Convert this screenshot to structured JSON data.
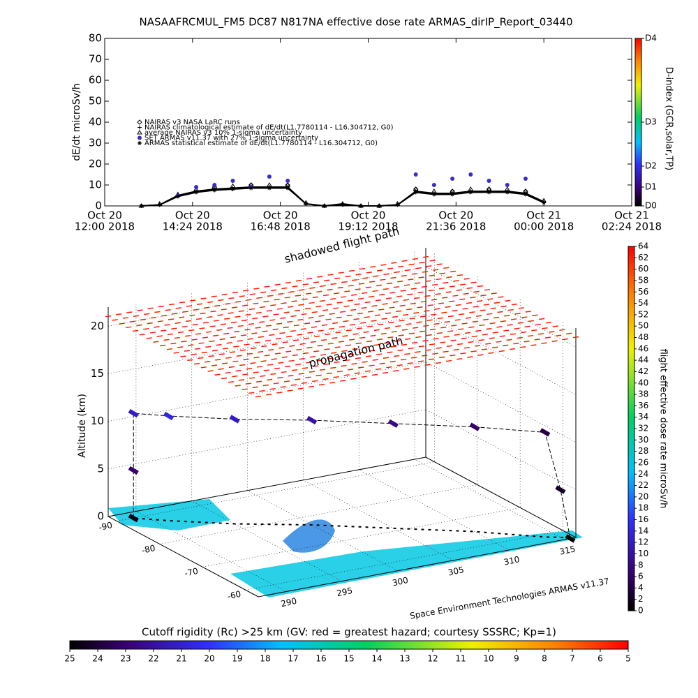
{
  "chart_data": [
    {
      "type": "line",
      "title": "NASAAFRCMUL_FM5 DC87 N817NA effective dose rate ARMAS_dirIP_Report_03440",
      "y_label": "dE/dt microSv/h",
      "x": [
        "2018-10-20T13:00",
        "2018-10-20T13:30",
        "2018-10-20T14:00",
        "2018-10-20T14:30",
        "2018-10-20T15:00",
        "2018-10-20T15:30",
        "2018-10-20T16:00",
        "2018-10-20T16:30",
        "2018-10-20T17:00",
        "2018-10-20T17:30",
        "2018-10-20T18:00",
        "2018-10-20T18:30",
        "2018-10-20T19:00",
        "2018-10-20T19:30",
        "2018-10-20T20:00",
        "2018-10-20T20:30",
        "2018-10-20T21:00",
        "2018-10-20T21:30",
        "2018-10-20T22:00",
        "2018-10-20T22:30",
        "2018-10-20T23:00",
        "2018-10-20T23:30",
        "2018-10-21T00:00",
        "2018-10-21T00:30"
      ],
      "xlim": [
        "2018-10-20T12:00",
        "2018-10-21T02:24"
      ],
      "xticks": [
        {
          "value": "2018-10-20T12:00",
          "label": [
            "Oct 20",
            "12:00 2018"
          ]
        },
        {
          "value": "2018-10-20T14:24",
          "label": [
            "Oct 20",
            "14:24 2018"
          ]
        },
        {
          "value": "2018-10-20T16:48",
          "label": [
            "Oct 20",
            "16:48 2018"
          ]
        },
        {
          "value": "2018-10-20T19:12",
          "label": [
            "Oct 20",
            "19:12 2018"
          ]
        },
        {
          "value": "2018-10-20T21:36",
          "label": [
            "Oct 20",
            "21:36 2018"
          ]
        },
        {
          "value": "2018-10-21T00:00",
          "label": [
            "Oct 21",
            "00:00 2018"
          ]
        },
        {
          "value": "2018-10-21T02:24",
          "label": [
            "Oct 21",
            "02:24 2018"
          ]
        }
      ],
      "ylim": [
        0,
        80
      ],
      "yticks": [
        0,
        10,
        20,
        30,
        40,
        50,
        60,
        70,
        80
      ],
      "series": [
        {
          "name": "NAIRAS v3 NASA LaRC runs",
          "marker": "diamond",
          "line": false,
          "color": "#000000",
          "values": [
            null,
            null,
            5,
            null,
            9,
            null,
            10,
            null,
            10,
            null,
            null,
            null,
            null,
            null,
            null,
            8,
            null,
            7,
            null,
            8,
            null,
            7,
            null,
            null
          ]
        },
        {
          "name": "NAIRAS climatological estimate of dE/dt(L1.7780114 - L16.304712, G0)",
          "marker": "plus",
          "line": true,
          "color": "#000000",
          "values": [
            0,
            0.5,
            5,
            7,
            8,
            8.5,
            9,
            9,
            9,
            1,
            0,
            1,
            0,
            0,
            0.5,
            7,
            6,
            6,
            7,
            7,
            7,
            6,
            2,
            null
          ]
        },
        {
          "name": "average NAIRAS v3 10% 1-sigma uncertainty",
          "marker": "triangle",
          "line": false,
          "color": "#000000",
          "values": [
            0,
            1,
            5.5,
            8,
            9,
            9.5,
            10,
            10,
            10,
            1.5,
            0,
            1,
            0,
            0,
            1,
            8,
            7,
            7,
            8,
            8,
            8,
            7,
            2.5,
            null
          ]
        },
        {
          "name": "SET ARMAS v11.37 with 27% 1-sigma uncertainty",
          "marker": "circle",
          "line": false,
          "color": "#3a2cc8",
          "values": [
            null,
            null,
            5,
            9,
            10,
            12,
            9,
            14,
            12,
            null,
            null,
            null,
            null,
            null,
            null,
            15,
            10,
            13,
            15,
            12,
            10,
            13,
            null,
            null
          ]
        },
        {
          "name": "ARMAS statistical estimate of dE/dt(L1.7780114 - L16.304712, G0)",
          "marker": "asterisk",
          "line": true,
          "color": "#000000",
          "values": [
            0,
            0.5,
            4.5,
            6.5,
            7.5,
            8,
            8.5,
            8.5,
            8.5,
            1,
            0,
            0.5,
            0,
            0,
            0.5,
            6.5,
            5.5,
            5.5,
            6.5,
            6.5,
            6.5,
            5.5,
            1.5,
            null
          ]
        }
      ],
      "colorbar": {
        "label": "D-index (GCR,solar,TP)",
        "ticks": [
          {
            "value": 0,
            "label": "D0"
          },
          {
            "value": 9,
            "label": "D1"
          },
          {
            "value": 19,
            "label": "D2"
          },
          {
            "value": 40,
            "label": "D3"
          },
          {
            "value": 80,
            "label": "D4"
          }
        ]
      }
    },
    {
      "type": "scatter3d",
      "labels": [
        "shadowed flight path",
        "propagation path"
      ],
      "z_label": "Altitude (km)",
      "xlim": [
        287.5,
        316
      ],
      "xticks": [
        290,
        295,
        300,
        305,
        310,
        315
      ],
      "ylim": [
        -92,
        -57
      ],
      "yticks": [
        -90,
        -80,
        -70,
        -60
      ],
      "zlim": [
        0,
        22
      ],
      "zticks": [
        0,
        5,
        10,
        15,
        20
      ],
      "flight": {
        "lon": [
          315.5,
          315,
          314,
          310,
          305,
          300,
          295,
          291,
          289,
          289,
          289
        ],
        "lat": [
          -57,
          -58,
          -59,
          -65,
          -71,
          -77,
          -82,
          -87,
          -90,
          -90,
          -90
        ],
        "alt": [
          0,
          5,
          11,
          11,
          11,
          11,
          11,
          11,
          11,
          5,
          0
        ],
        "dose": [
          0,
          2,
          4,
          6,
          8,
          10,
          12,
          14,
          12,
          6,
          1
        ]
      },
      "upper_layer": {
        "alt": 21,
        "dose": 62
      },
      "colorbar": {
        "label": "flight effective dose rate microSv/h",
        "lim": [
          0,
          64
        ],
        "ticks": [
          0,
          2,
          4,
          6,
          8,
          10,
          12,
          14,
          16,
          18,
          20,
          22,
          24,
          26,
          28,
          30,
          32,
          34,
          36,
          38,
          40,
          42,
          44,
          46,
          48,
          50,
          52,
          54,
          56,
          58,
          60,
          62,
          64
        ]
      },
      "credit": "Space Environment Technologies ARMAS v11.37"
    },
    {
      "type": "colorbar",
      "label": "Cutoff rigidity (Rc) >25 km (GV: red = greatest hazard; courtesy SSSRC; Kp=1)",
      "lim": [
        25,
        5
      ],
      "ticks": [
        25,
        24,
        23,
        22,
        21,
        20,
        19,
        18,
        17,
        16,
        15,
        14,
        13,
        12,
        11,
        10,
        9,
        8,
        7,
        6,
        5
      ]
    }
  ]
}
